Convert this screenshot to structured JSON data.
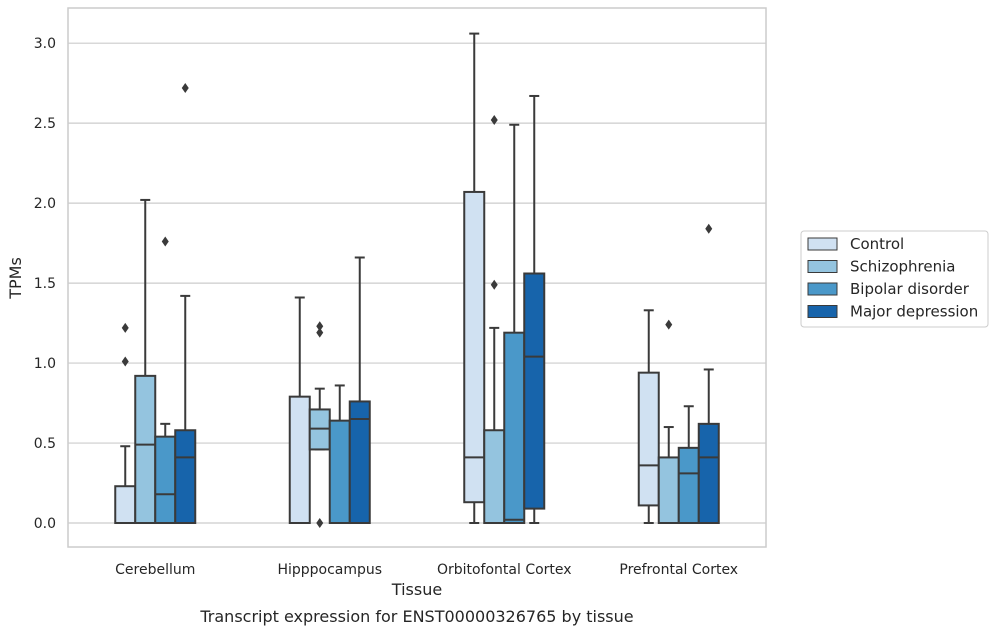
{
  "chart_data": {
    "type": "box",
    "xlabel": "Tissue",
    "ylabel": "TPMs",
    "caption": "Transcript expression for ENST00000326765 by tissue",
    "ylim": [
      -0.15,
      3.22
    ],
    "yticks": [
      0.0,
      0.5,
      1.0,
      1.5,
      2.0,
      2.5,
      3.0
    ],
    "ytick_labels": [
      "0.0",
      "0.5",
      "1.0",
      "1.5",
      "2.0",
      "2.5",
      "3.0"
    ],
    "grid": "horizontal",
    "legend_position": "right",
    "categories": [
      "Cerebellum",
      "Hipppocampus",
      "Orbitofontal Cortex",
      "Prefrontal Cortex"
    ],
    "series": [
      {
        "name": "Control",
        "color": "#d0e1f2",
        "boxes": [
          {
            "whislo": 0.0,
            "q1": 0.0,
            "med": 0.0,
            "q3": 0.23,
            "whishi": 0.48,
            "fliers": [
              1.01,
              1.22
            ]
          },
          {
            "whislo": 0.0,
            "q1": 0.0,
            "med": 0.0,
            "q3": 0.79,
            "whishi": 1.41,
            "fliers": []
          },
          {
            "whislo": 0.0,
            "q1": 0.13,
            "med": 0.41,
            "q3": 2.07,
            "whishi": 3.06,
            "fliers": []
          },
          {
            "whislo": 0.0,
            "q1": 0.11,
            "med": 0.36,
            "q3": 0.94,
            "whishi": 1.33,
            "fliers": []
          }
        ]
      },
      {
        "name": "Schizophrenia",
        "color": "#94c4df",
        "boxes": [
          {
            "whislo": 0.0,
            "q1": 0.0,
            "med": 0.49,
            "q3": 0.92,
            "whishi": 2.02,
            "fliers": []
          },
          {
            "whislo": 0.46,
            "q1": 0.46,
            "med": 0.59,
            "q3": 0.71,
            "whishi": 0.84,
            "fliers": [
              0.0,
              1.19,
              1.23
            ]
          },
          {
            "whislo": 0.0,
            "q1": 0.0,
            "med": 0.0,
            "q3": 0.58,
            "whishi": 1.22,
            "fliers": [
              1.49,
              2.52
            ]
          },
          {
            "whislo": 0.0,
            "q1": 0.0,
            "med": 0.0,
            "q3": 0.41,
            "whishi": 0.6,
            "fliers": [
              1.24
            ]
          }
        ]
      },
      {
        "name": "Bipolar disorder",
        "color": "#4a98c9",
        "boxes": [
          {
            "whislo": 0.0,
            "q1": 0.0,
            "med": 0.18,
            "q3": 0.54,
            "whishi": 0.62,
            "fliers": [
              1.76
            ]
          },
          {
            "whislo": 0.0,
            "q1": 0.0,
            "med": 0.0,
            "q3": 0.64,
            "whishi": 0.86,
            "fliers": []
          },
          {
            "whislo": 0.0,
            "q1": 0.0,
            "med": 0.02,
            "q3": 1.19,
            "whishi": 2.49,
            "fliers": []
          },
          {
            "whislo": 0.0,
            "q1": 0.0,
            "med": 0.31,
            "q3": 0.47,
            "whishi": 0.73,
            "fliers": []
          }
        ]
      },
      {
        "name": "Major depression",
        "color": "#1764ab",
        "boxes": [
          {
            "whislo": 0.0,
            "q1": 0.0,
            "med": 0.41,
            "q3": 0.58,
            "whishi": 1.42,
            "fliers": [
              2.72
            ]
          },
          {
            "whislo": 0.0,
            "q1": 0.0,
            "med": 0.65,
            "q3": 0.76,
            "whishi": 1.66,
            "fliers": []
          },
          {
            "whislo": 0.0,
            "q1": 0.09,
            "med": 1.04,
            "q3": 1.56,
            "whishi": 2.67,
            "fliers": []
          },
          {
            "whislo": 0.0,
            "q1": 0.0,
            "med": 0.41,
            "q3": 0.62,
            "whishi": 0.96,
            "fliers": [
              1.84
            ]
          }
        ]
      }
    ]
  }
}
